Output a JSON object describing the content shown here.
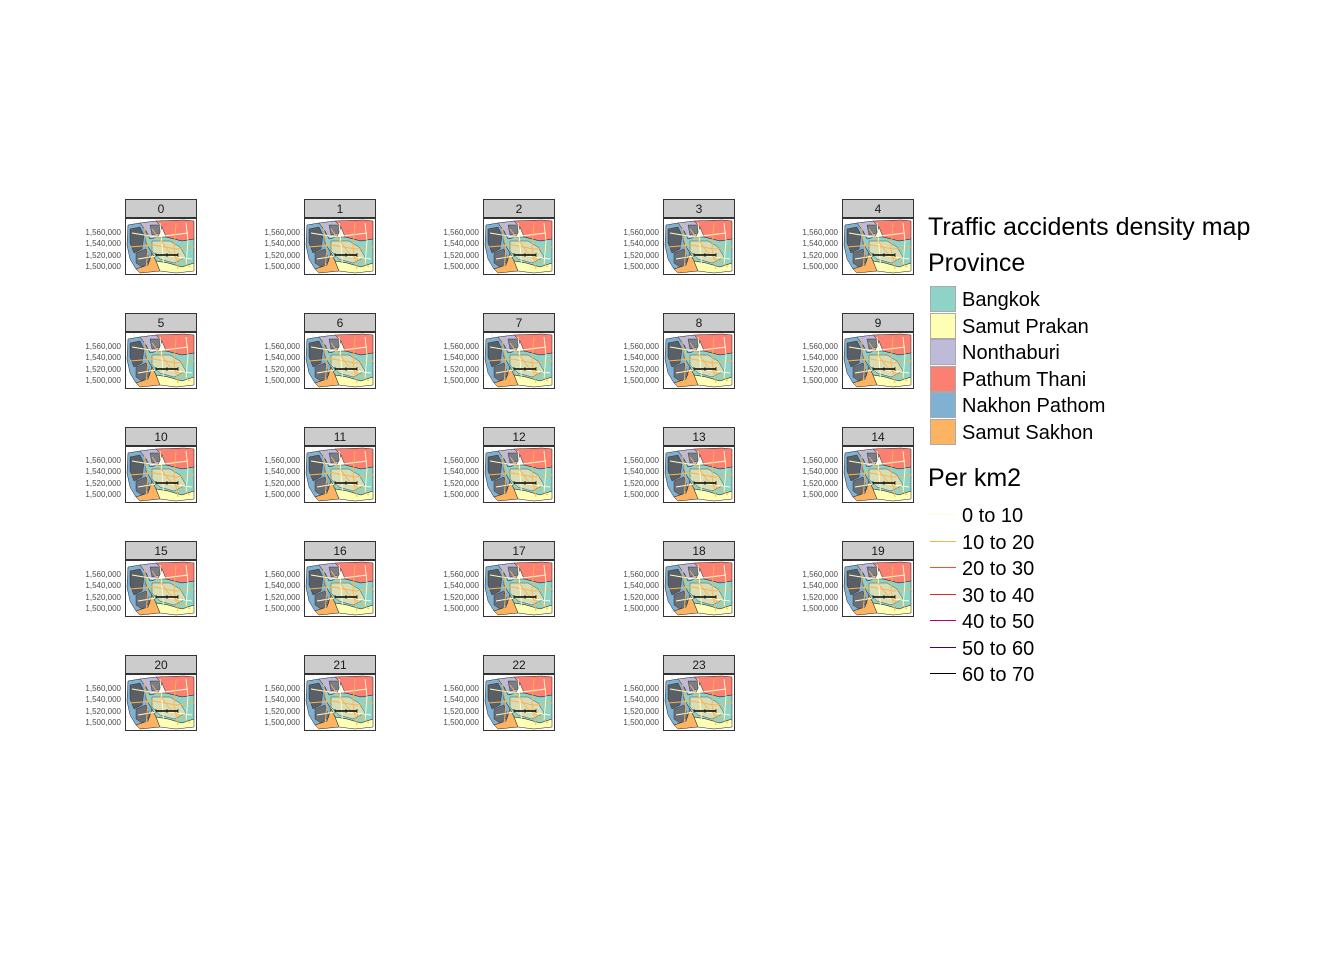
{
  "panels": [
    "0",
    "1",
    "2",
    "3",
    "4",
    "5",
    "6",
    "7",
    "8",
    "9",
    "10",
    "11",
    "12",
    "13",
    "14",
    "15",
    "16",
    "17",
    "18",
    "19",
    "20",
    "21",
    "22",
    "23"
  ],
  "y_axis_ticks": [
    "1,560,000",
    "1,540,000",
    "1,520,000",
    "1,500,000"
  ],
  "legend": {
    "title": "Traffic accidents density map",
    "province_title": "Province",
    "provinces": [
      {
        "name": "Bangkok",
        "color": "#8DD3C7"
      },
      {
        "name": "Samut Prakan",
        "color": "#FFFFB3"
      },
      {
        "name": "Nonthaburi",
        "color": "#BEBADA"
      },
      {
        "name": "Pathum Thani",
        "color": "#FB8072"
      },
      {
        "name": "Nakhon Pathom",
        "color": "#80B1D3"
      },
      {
        "name": "Samut Sakhon",
        "color": "#FDB462"
      }
    ],
    "density_title": "Per km2",
    "density_classes": [
      {
        "label": "0 to 10",
        "color": "#FFFFCC"
      },
      {
        "label": "10 to 20",
        "color": "#FEB24C"
      },
      {
        "label": "20 to 30",
        "color": "#FC4E2A"
      },
      {
        "label": "30 to 40",
        "color": "#D7301F"
      },
      {
        "label": "40 to 50",
        "color": "#AE017E"
      },
      {
        "label": "50 to 60",
        "color": "#49006A"
      },
      {
        "label": "60 to 70",
        "color": "#000000"
      }
    ]
  }
}
